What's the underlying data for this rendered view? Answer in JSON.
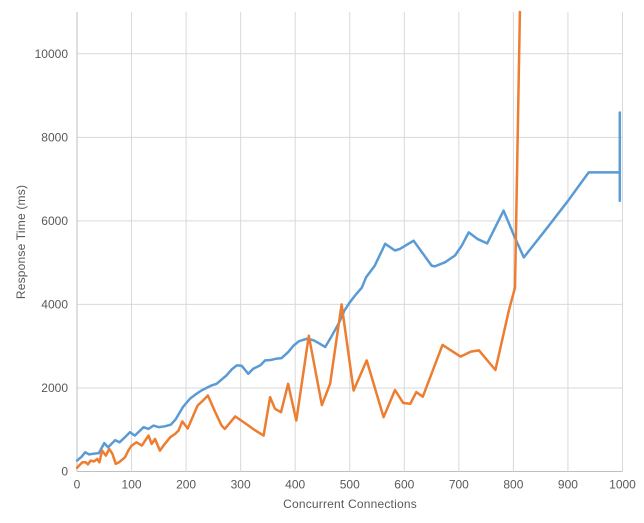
{
  "chart_data": {
    "type": "line",
    "title": "",
    "xlabel": "Concurrent Connections",
    "ylabel": "Response Time (ms)",
    "xlim": [
      0,
      1000
    ],
    "ylim": [
      0,
      11000
    ],
    "x_ticks": [
      0,
      100,
      200,
      300,
      400,
      500,
      600,
      700,
      800,
      900,
      1000
    ],
    "y_ticks": [
      0,
      2000,
      4000,
      6000,
      8000,
      10000
    ],
    "grid": true,
    "legend_position": "none",
    "colors": {
      "grid": "#d9d9d9",
      "axis": "#bfbfbf",
      "tick_text": "#595959"
    },
    "series": [
      {
        "name": "blue-series",
        "color": "#5B9BD5",
        "points": [
          [
            0,
            260
          ],
          [
            8,
            350
          ],
          [
            15,
            460
          ],
          [
            22,
            410
          ],
          [
            31,
            425
          ],
          [
            40,
            440
          ],
          [
            50,
            680
          ],
          [
            57,
            580
          ],
          [
            63,
            660
          ],
          [
            70,
            750
          ],
          [
            78,
            700
          ],
          [
            88,
            820
          ],
          [
            97,
            940
          ],
          [
            106,
            860
          ],
          [
            122,
            1060
          ],
          [
            131,
            1020
          ],
          [
            140,
            1100
          ],
          [
            150,
            1060
          ],
          [
            162,
            1085
          ],
          [
            172,
            1120
          ],
          [
            181,
            1250
          ],
          [
            194,
            1540
          ],
          [
            207,
            1740
          ],
          [
            219,
            1860
          ],
          [
            228,
            1940
          ],
          [
            237,
            2000
          ],
          [
            247,
            2060
          ],
          [
            256,
            2100
          ],
          [
            265,
            2200
          ],
          [
            274,
            2300
          ],
          [
            284,
            2450
          ],
          [
            293,
            2540
          ],
          [
            302,
            2530
          ],
          [
            314,
            2340
          ],
          [
            323,
            2460
          ],
          [
            336,
            2540
          ],
          [
            345,
            2660
          ],
          [
            355,
            2670
          ],
          [
            365,
            2700
          ],
          [
            375,
            2715
          ],
          [
            387,
            2855
          ],
          [
            397,
            3015
          ],
          [
            407,
            3120
          ],
          [
            422,
            3180
          ],
          [
            434,
            3140
          ],
          [
            445,
            3060
          ],
          [
            455,
            2980
          ],
          [
            465,
            3200
          ],
          [
            480,
            3550
          ],
          [
            490,
            3850
          ],
          [
            500,
            4050
          ],
          [
            512,
            4250
          ],
          [
            522,
            4400
          ],
          [
            530,
            4650
          ],
          [
            546,
            4930
          ],
          [
            565,
            5450
          ],
          [
            583,
            5290
          ],
          [
            592,
            5330
          ],
          [
            617,
            5525
          ],
          [
            650,
            4930
          ],
          [
            656,
            4910
          ],
          [
            675,
            5010
          ],
          [
            693,
            5170
          ],
          [
            705,
            5400
          ],
          [
            718,
            5725
          ],
          [
            735,
            5560
          ],
          [
            752,
            5460
          ],
          [
            782,
            6245
          ],
          [
            800,
            5680
          ],
          [
            819,
            5125
          ],
          [
            860,
            5800
          ],
          [
            900,
            6480
          ],
          [
            938,
            7160
          ],
          [
            995,
            7160
          ],
          [
            995,
            8595
          ],
          [
            995,
            6480
          ]
        ]
      },
      {
        "name": "orange-series",
        "color": "#ED7D31",
        "points": [
          [
            0,
            90
          ],
          [
            6,
            170
          ],
          [
            10,
            220
          ],
          [
            16,
            220
          ],
          [
            20,
            170
          ],
          [
            25,
            260
          ],
          [
            31,
            240
          ],
          [
            37,
            300
          ],
          [
            41,
            220
          ],
          [
            46,
            500
          ],
          [
            53,
            380
          ],
          [
            59,
            540
          ],
          [
            65,
            420
          ],
          [
            71,
            185
          ],
          [
            77,
            220
          ],
          [
            88,
            340
          ],
          [
            94,
            500
          ],
          [
            100,
            620
          ],
          [
            109,
            700
          ],
          [
            119,
            620
          ],
          [
            125,
            740
          ],
          [
            131,
            860
          ],
          [
            137,
            660
          ],
          [
            143,
            780
          ],
          [
            152,
            500
          ],
          [
            161,
            660
          ],
          [
            171,
            820
          ],
          [
            180,
            900
          ],
          [
            186,
            980
          ],
          [
            193,
            1200
          ],
          [
            203,
            1030
          ],
          [
            221,
            1580
          ],
          [
            231,
            1700
          ],
          [
            240,
            1820
          ],
          [
            252,
            1460
          ],
          [
            265,
            1100
          ],
          [
            271,
            1020
          ],
          [
            290,
            1320
          ],
          [
            310,
            1140
          ],
          [
            326,
            990
          ],
          [
            342,
            860
          ],
          [
            354,
            1780
          ],
          [
            363,
            1500
          ],
          [
            374,
            1420
          ],
          [
            387,
            2100
          ],
          [
            402,
            1220
          ],
          [
            425,
            3250
          ],
          [
            449,
            1590
          ],
          [
            464,
            2100
          ],
          [
            485,
            4000
          ],
          [
            507,
            1940
          ],
          [
            531,
            2660
          ],
          [
            562,
            1300
          ],
          [
            583,
            1950
          ],
          [
            598,
            1640
          ],
          [
            611,
            1620
          ],
          [
            622,
            1900
          ],
          [
            634,
            1790
          ],
          [
            670,
            3030
          ],
          [
            703,
            2750
          ],
          [
            722,
            2870
          ],
          [
            737,
            2900
          ],
          [
            767,
            2430
          ],
          [
            792,
            3870
          ],
          [
            803,
            4400
          ],
          [
            812,
            11000
          ]
        ]
      }
    ]
  }
}
